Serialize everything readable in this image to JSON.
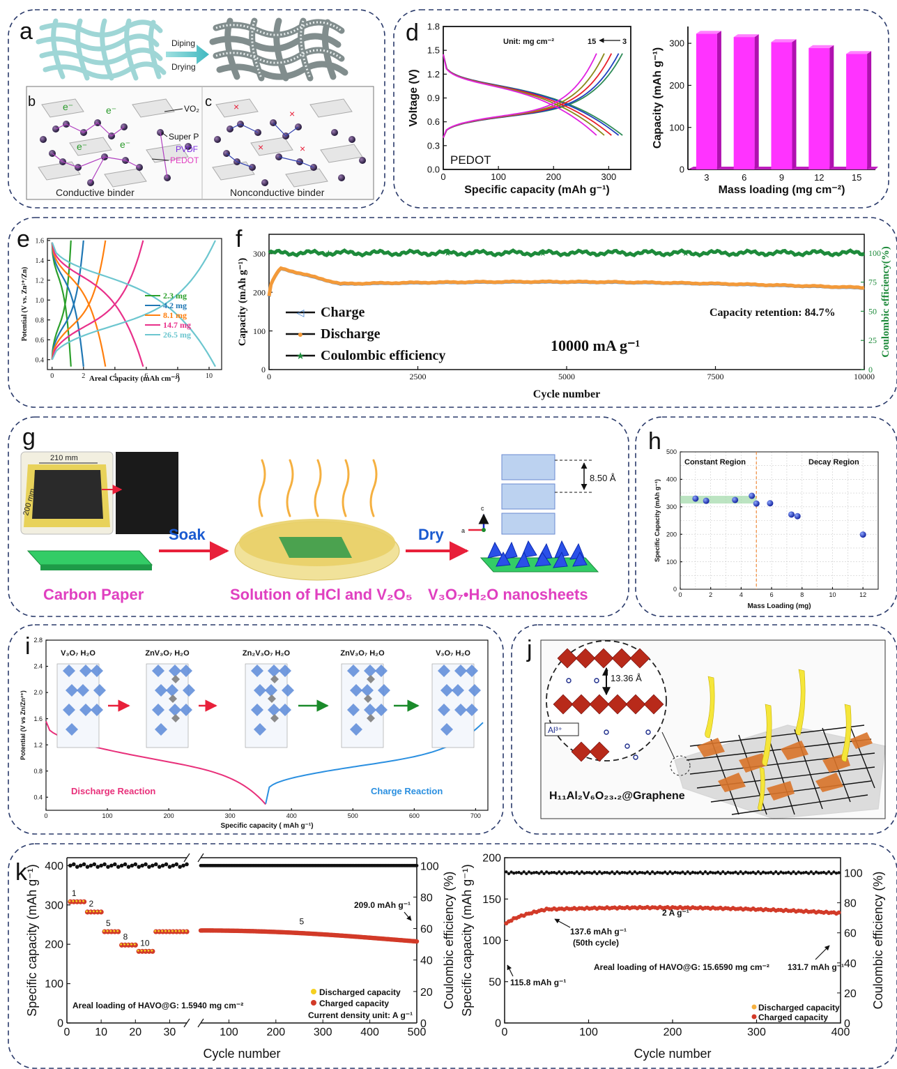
{
  "panel_letters": {
    "a": "a",
    "b": "b",
    "c": "c",
    "d": "d",
    "e": "e",
    "f": "f",
    "g": "g",
    "h": "h",
    "i": "i",
    "j": "j",
    "k": "k"
  },
  "panel_a": {
    "dip": "Diping",
    "dry": "Drying",
    "e_label": "e⁻",
    "x_label": "×",
    "vo2": "VO₂",
    "superp": "Super P",
    "pvdf": "PVDF",
    "pedot": "PEDOT",
    "conductive": "Conductive binder",
    "nonconductive": "Nonconductive binder"
  },
  "panel_g": {
    "dim1": "210 mm",
    "dim2": "200 mm",
    "soak": "Soak",
    "dry": "Dry",
    "spacing": "8.50 Å",
    "axis_c": "c",
    "axis_a": "a",
    "carbon": "Carbon Paper",
    "solution": "Solution of HCl and V₂O₅",
    "nanosheets": "V₃O₇•H₂O nanosheets"
  },
  "panel_j": {
    "spacing": "13.36 Å",
    "ion": "Al³⁺",
    "formula": "H₁₁Al₂V₆O₂₃.₂@Graphene"
  },
  "chart_data": [
    {
      "id": "d-left",
      "type": "line",
      "ylabel": "Voltage (V)",
      "xlabel": "Specific capacity (mAh g⁻¹)",
      "xlim": [
        0,
        340
      ],
      "ylim": [
        0.0,
        1.8
      ],
      "xticks": [
        "0",
        "100",
        "200",
        "300"
      ],
      "yticks": [
        "0.0",
        "0.3",
        "0.6",
        "0.9",
        "1.2",
        "1.5",
        "1.8"
      ],
      "annotation_unit": "Unit: mg cm⁻²",
      "annotation_range_left": "15",
      "annotation_range_right": "3",
      "corner_label": "PEDOT",
      "series": [
        {
          "loading": 3,
          "color": "#2e8b57",
          "capacity": 325
        },
        {
          "loading": 6,
          "color": "#1f3fbf",
          "capacity": 318
        },
        {
          "loading": 9,
          "color": "#e8202a",
          "capacity": 305
        },
        {
          "loading": 12,
          "color": "#8a8a1a",
          "capacity": 292
        },
        {
          "loading": 15,
          "color": "#e020e0",
          "capacity": 278
        }
      ]
    },
    {
      "id": "d-right",
      "type": "bar",
      "ylabel": "Capacity (mAh g⁻¹)",
      "xlabel": "Mass loading (mg cm⁻²)",
      "categories": [
        "3",
        "6",
        "9",
        "12",
        "15"
      ],
      "values": [
        323,
        315,
        303,
        289,
        275
      ],
      "ylim": [
        0,
        340
      ],
      "yticks": [
        "0",
        "100",
        "200",
        "300"
      ],
      "color": "#ff33ff"
    },
    {
      "id": "e",
      "type": "line",
      "ylabel": "Potential (V vs. Zn²⁺/Zn)",
      "xlabel": "Areal Capacity (mAh cm⁻²)",
      "xlim": [
        -0.3,
        10.8
      ],
      "ylim": [
        0.3,
        1.62
      ],
      "xticks": [
        "0",
        "2",
        "4",
        "6",
        "8",
        "10"
      ],
      "yticks": [
        "0.4",
        "0.6",
        "0.8",
        "1.0",
        "1.2",
        "1.4",
        "1.6"
      ],
      "series": [
        {
          "name": "2.3 mg",
          "color": "#2ca02c",
          "capacity": 1.2
        },
        {
          "name": "4.2 mg",
          "color": "#1f77b4",
          "capacity": 2.0
        },
        {
          "name": "8.1 mg",
          "color": "#ff7f0e",
          "capacity": 3.4
        },
        {
          "name": "14.7 mg",
          "color": "#e8308a",
          "capacity": 5.8
        },
        {
          "name": "26.5 mg",
          "color": "#6cc6cf",
          "capacity": 10.4
        }
      ]
    },
    {
      "id": "f",
      "type": "scatter",
      "ylabel": "Capacity (mAh g⁻¹)",
      "ylabel_right": "Coulombic efficiency(%)",
      "xlabel": "Cycle number",
      "xlim": [
        0,
        10000
      ],
      "ylim": [
        0,
        350
      ],
      "ylim_right": [
        0,
        116
      ],
      "xticks": [
        "0",
        "2500",
        "5000",
        "7500",
        "10000"
      ],
      "yticks": [
        "0",
        "100",
        "200",
        "300"
      ],
      "yticks_right": [
        "0",
        "25",
        "50",
        "75",
        "100"
      ],
      "capacity_start": 190,
      "capacity_peak": 262,
      "capacity_end": 212,
      "coulombic_efficiency": 100,
      "retention": "Capacity retention: 84.7%",
      "current": "10000 mA g⁻¹",
      "series": [
        {
          "name": "Charge",
          "color": "#3a7fd0"
        },
        {
          "name": "Discharge",
          "color": "#f39a3a"
        },
        {
          "name": "Coulombic efficiency",
          "color": "#1d8a3a"
        }
      ]
    },
    {
      "id": "h",
      "type": "scatter",
      "ylabel": "Specific Capacity (mAh g⁻¹)",
      "xlabel": "Mass Loading (mg)",
      "xlim": [
        0,
        13
      ],
      "ylim": [
        0,
        500
      ],
      "xticks": [
        "0",
        "2",
        "4",
        "6",
        "8",
        "10",
        "12"
      ],
      "yticks": [
        "0",
        "100",
        "200",
        "300",
        "400",
        "500"
      ],
      "region_left": "Constant Region",
      "region_right": "Decay Region",
      "boundary_x": 5.0,
      "points": [
        [
          1.0,
          330
        ],
        [
          1.7,
          322
        ],
        [
          3.6,
          325
        ],
        [
          4.7,
          340
        ],
        [
          5.0,
          312
        ],
        [
          5.9,
          313
        ],
        [
          7.3,
          272
        ],
        [
          7.7,
          266
        ],
        [
          12.0,
          199
        ]
      ]
    },
    {
      "id": "i",
      "type": "line",
      "ylabel": "Potential (V vs Zn/Zn²⁺)",
      "xlabel": "Specific capacity ( mAh g⁻¹)",
      "xlim": [
        0,
        720
      ],
      "ylim": [
        0.2,
        2.8
      ],
      "xticks": [
        "0",
        "100",
        "200",
        "300",
        "400",
        "500",
        "600",
        "700"
      ],
      "yticks": [
        "0.4",
        "0.8",
        "1.2",
        "1.6",
        "2.0",
        "2.4",
        "2.8"
      ],
      "discharge_label": "Discharge Reaction",
      "charge_label": "Charge Reaction",
      "stages": [
        "V₃O₇ H₂O",
        "ZnV₃O₇ H₂O",
        "Zn₂V₃O₇ H₂O",
        "ZnV₃O₇ H₂O",
        "V₃O₇ H₂O"
      ],
      "turn_capacity": 358,
      "end_capacity": 712,
      "series": [
        {
          "color": "#e8307a"
        },
        {
          "color": "#2a8fe0"
        }
      ]
    },
    {
      "id": "k-left",
      "type": "scatter",
      "ylabel": "Specific capacity (mAh g⁻¹)",
      "ylabel_right": "Coulombic efficiency (%)",
      "xlabel": "Cycle number",
      "ylim": [
        0,
        420
      ],
      "ylim_right": [
        0,
        105
      ],
      "xticks": [
        "0",
        "10",
        "20",
        "30",
        "100",
        "200",
        "300",
        "400",
        "500"
      ],
      "yticks": [
        "0",
        "100",
        "200",
        "300",
        "400"
      ],
      "yticks_right": [
        "0",
        "20",
        "40",
        "60",
        "80",
        "100"
      ],
      "rate_steps": [
        {
          "label": "1",
          "cycles": [
            1,
            5
          ],
          "value": 308
        },
        {
          "label": "2",
          "cycles": [
            6,
            10
          ],
          "value": 282
        },
        {
          "label": "5",
          "cycles": [
            11,
            15
          ],
          "value": 232
        },
        {
          "label": "8",
          "cycles": [
            16,
            20
          ],
          "value": 198
        },
        {
          "label": "10",
          "cycles": [
            21,
            25
          ],
          "value": 182
        },
        {
          "label": "",
          "cycles": [
            26,
            35
          ],
          "value": 232
        }
      ],
      "long_cycle_start": 235,
      "long_cycle_end": 209,
      "long_label": "5",
      "end_annotation": "209.0 mAh g⁻¹",
      "areal": "Areal loading of HAVO@G: 1.5940 mg cm⁻²",
      "current_unit": "Current density unit: A g⁻¹",
      "legend": [
        "Discharged capacity",
        "Charged capacity"
      ],
      "colors": {
        "discharged": "#f5d020",
        "charged": "#d23a28",
        "ce": "#111111"
      }
    },
    {
      "id": "k-right",
      "type": "scatter",
      "ylabel": "Specific capacity (mAh g⁻¹)",
      "ylabel_right": "Coulombic efficiency (%)",
      "xlabel": "Cycle number",
      "xlim": [
        0,
        400
      ],
      "ylim": [
        0,
        200
      ],
      "ylim_right": [
        0,
        110
      ],
      "xticks": [
        "0",
        "100",
        "200",
        "300",
        "400"
      ],
      "yticks": [
        "0",
        "50",
        "100",
        "150",
        "200"
      ],
      "yticks_right": [
        "0",
        "20",
        "40",
        "60",
        "80",
        "100"
      ],
      "start": 115.8,
      "peak": 137.6,
      "end": 131.7,
      "ce": 100,
      "ann_start": "115.8 mAh g⁻¹",
      "ann_peak": "137.6 mAh g⁻¹",
      "ann_peak2": "(50th cycle)",
      "ann_end": "131.7 mAh g⁻¹",
      "rate": "2 A g⁻¹",
      "areal": "Areal loading of HAVO@G: 15.6590 mg cm⁻²",
      "legend": [
        "Discharged capacity",
        "Charged capacity"
      ]
    }
  ]
}
